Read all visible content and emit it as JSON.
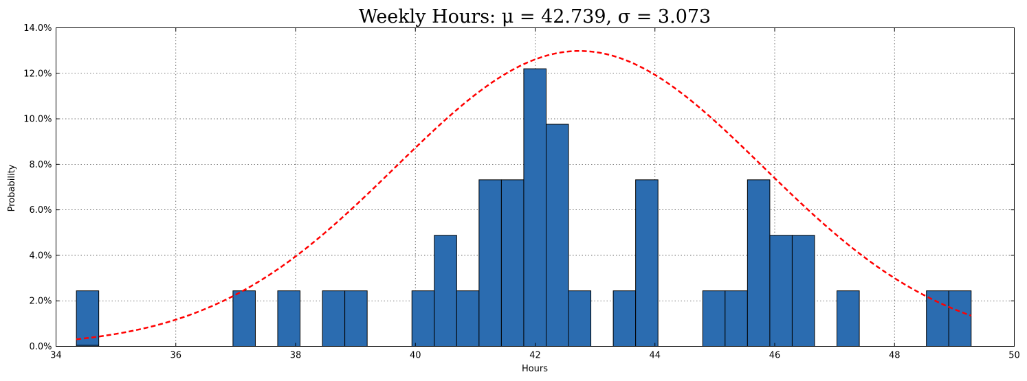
{
  "chart_data": {
    "type": "bar",
    "title": "Weekly Hours: μ = 42.739,  σ = 3.073",
    "xlabel": "Hours",
    "ylabel": "Probability",
    "xlim": [
      34,
      50
    ],
    "ylim": [
      0,
      0.14
    ],
    "x_ticks": [
      "34",
      "36",
      "38",
      "40",
      "42",
      "44",
      "46",
      "48",
      "50"
    ],
    "y_ticks": [
      "0.0%",
      "2.0%",
      "4.0%",
      "6.0%",
      "8.0%",
      "10.0%",
      "12.0%",
      "14.0%"
    ],
    "grid": true,
    "bar_color": "#2b6cb0",
    "curve_color": "#ff0000",
    "histogram": {
      "bin_start": 34.34,
      "bin_width": 0.3735,
      "values": [
        0.0244,
        0,
        0,
        0,
        0,
        0,
        0,
        0.0244,
        0,
        0.0244,
        0,
        0.0244,
        0.0244,
        0,
        0,
        0.0244,
        0.0488,
        0.0244,
        0.0732,
        0.0732,
        0.122,
        0.0976,
        0.0244,
        0,
        0.0244,
        0.0732,
        0,
        0,
        0.0244,
        0.0244,
        0.0732,
        0.0488,
        0.0488,
        0,
        0.0244,
        0,
        0,
        0,
        0.0244,
        0.0244
      ]
    },
    "series": [
      {
        "type": "line",
        "style": "dashed",
        "mu": 42.739,
        "sigma": 3.073,
        "x_range": [
          34.34,
          49.28
        ]
      }
    ]
  }
}
